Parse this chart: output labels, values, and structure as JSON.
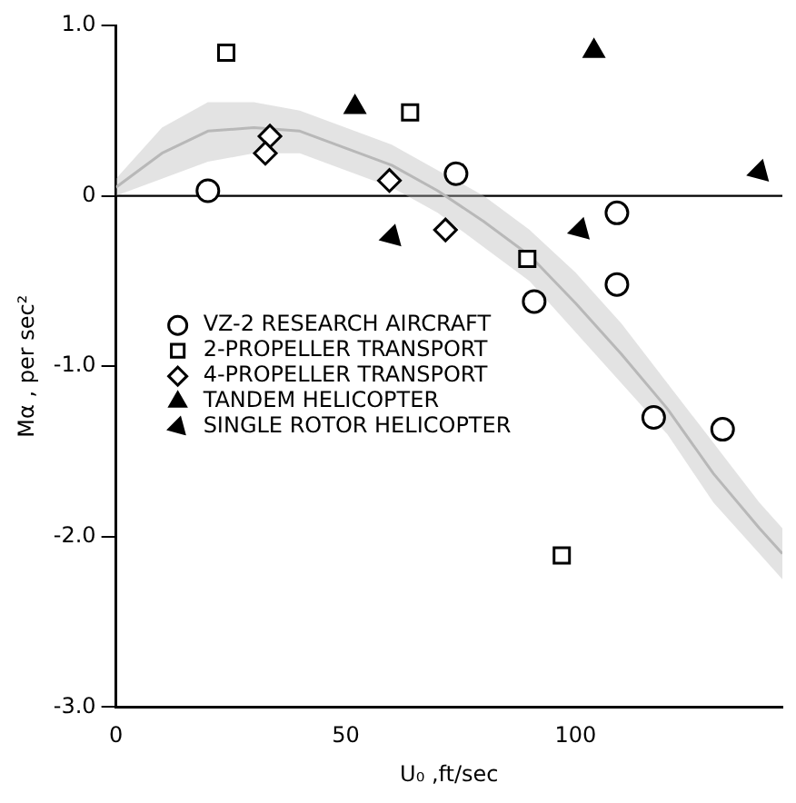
{
  "chart_data": {
    "type": "scatter",
    "xlabel": "U₀ ,ft/sec",
    "ylabel": "Mα , per sec²",
    "xlim": [
      0,
      145
    ],
    "xticks": [
      0,
      50,
      100
    ],
    "ylim": [
      -3,
      1
    ],
    "yticks": [
      {
        "value": 1,
        "label": "1.0"
      },
      0,
      {
        "value": -1,
        "label": "-1.0"
      },
      {
        "value": -2,
        "label": "-2.0"
      },
      {
        "value": -3,
        "label": "-3.0"
      }
    ],
    "grid": false,
    "legend": "left",
    "ref_lines": [
      {
        "axis": "y",
        "value": 0,
        "color": "#000000"
      }
    ],
    "series": [
      {
        "type": "line",
        "color": "#b8b8b8",
        "x": [
          0,
          10,
          20,
          30,
          40,
          50,
          60,
          70,
          80,
          90,
          100,
          110,
          120,
          130,
          140,
          145
        ],
        "values": [
          0.05,
          0.25,
          0.38,
          0.4,
          0.38,
          0.28,
          0.18,
          0.03,
          -0.15,
          -0.35,
          -0.63,
          -0.93,
          -1.25,
          -1.63,
          -1.95,
          -2.1
        ],
        "lower": [
          0.0,
          0.1,
          0.2,
          0.25,
          0.25,
          0.15,
          0.05,
          -0.1,
          -0.3,
          -0.5,
          -0.8,
          -1.1,
          -1.4,
          -1.8,
          -2.1,
          -2.25
        ],
        "upper": [
          0.1,
          0.4,
          0.55,
          0.55,
          0.5,
          0.4,
          0.3,
          0.15,
          0.0,
          -0.2,
          -0.45,
          -0.75,
          -1.1,
          -1.45,
          -1.8,
          -1.95
        ]
      },
      {
        "name": "VZ-2 RESEARCH AIRCRAFT",
        "color": "#000000",
        "marker": "circle",
        "x": [
          20,
          74,
          109,
          91,
          109,
          117,
          132
        ],
        "values": [
          0.03,
          0.13,
          -0.1,
          -0.62,
          -0.52,
          -1.3,
          -1.37
        ]
      },
      {
        "name": "2-PROPELLER TRANSPORT",
        "color": "#000000",
        "marker": "square",
        "x": [
          24,
          64,
          89.5,
          97
        ],
        "values": [
          0.84,
          0.49,
          -0.37,
          -2.11
        ]
      },
      {
        "name": "4-PROPELLER TRANSPORT",
        "color": "#000000",
        "marker": "diamond",
        "x": [
          33.5,
          32.5,
          59.5,
          71.7
        ],
        "values": [
          0.35,
          0.25,
          0.09,
          -0.2
        ]
      },
      {
        "name": "TANDEM HELICOPTER",
        "color": "#000000",
        "marker": "triangle",
        "x": [
          52,
          104
        ],
        "values": [
          0.52,
          0.85
        ]
      },
      {
        "name": "SINGLE ROTOR HELICOPTER",
        "color": "#000000",
        "marker": "triangle",
        "x": [
          60,
          101,
          140
        ],
        "values": [
          -0.24,
          -0.2,
          0.14
        ]
      }
    ]
  }
}
